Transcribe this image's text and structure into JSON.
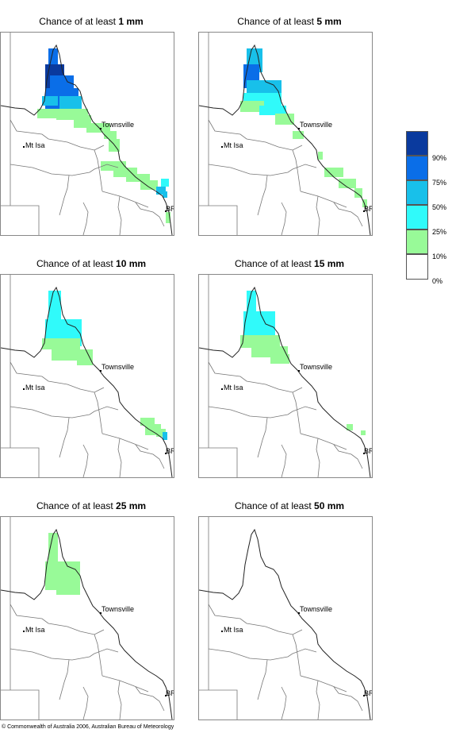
{
  "panels": [
    {
      "prefix": "Chance of at least ",
      "amount": "1 mm"
    },
    {
      "prefix": "Chance of at least ",
      "amount": "5 mm"
    },
    {
      "prefix": "Chance of at least ",
      "amount": "10 mm"
    },
    {
      "prefix": "Chance of at least ",
      "amount": "15 mm"
    },
    {
      "prefix": "Chance of at least ",
      "amount": "25 mm"
    },
    {
      "prefix": "Chance of at least ",
      "amount": "50 mm"
    }
  ],
  "places": {
    "townsville": "Townsville",
    "mt_isa": "Mt Isa",
    "bris": "BRIS"
  },
  "legend": {
    "labels": [
      "90%",
      "75%",
      "50%",
      "25%",
      "10%",
      "0%"
    ],
    "colors": [
      "#0a3a9e",
      "#0a6ee8",
      "#18c0ea",
      "#30fafa",
      "#98fa98",
      "#ffffff"
    ]
  },
  "copyright": "© Commonwealth of Australia 2006, Australian Bureau of Meteorology"
}
